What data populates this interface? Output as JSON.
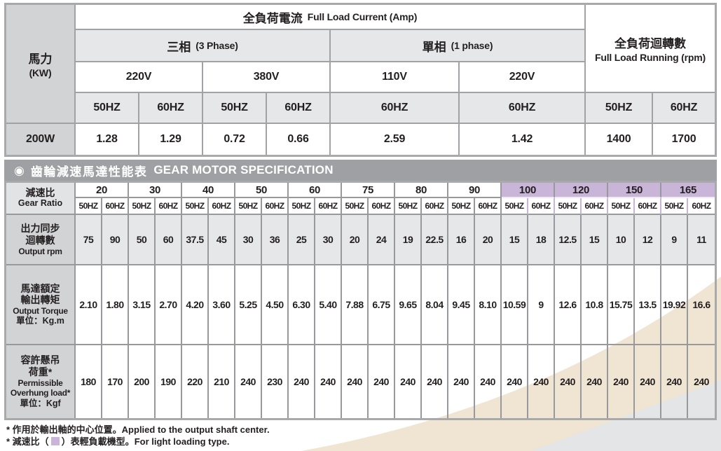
{
  "colors": {
    "accent_lavender": "#c9b5d7",
    "banner_gray": "#9ea0a3",
    "cell_gray": "#e6e7e8",
    "label_gray": "#d2d3d5",
    "beige_band": "#f0e4d3",
    "corner_gray": "#e3e5e7",
    "grid_line": "#97999c"
  },
  "top_table": {
    "power_header": {
      "zh": "馬力",
      "en": "(KW)"
    },
    "current_header": {
      "zh": "全負荷電流",
      "en": "Full Load Current (Amp)"
    },
    "rpm_header": {
      "zh": "全負荷迴轉數",
      "en": "Full Load Running (rpm)"
    },
    "phases": [
      {
        "zh": "三相",
        "en": "(3 Phase)"
      },
      {
        "zh": "單相",
        "en": "(1 phase)"
      }
    ],
    "voltages": [
      "220V",
      "380V",
      "110V",
      "220V"
    ],
    "freq_row": [
      "50HZ",
      "60HZ",
      "50HZ",
      "60HZ",
      "60HZ",
      "60HZ",
      "50HZ",
      "60HZ"
    ],
    "data_row": {
      "power": "200W",
      "currents": [
        "1.28",
        "1.29",
        "0.72",
        "0.66",
        "2.59",
        "1.42"
      ],
      "rpm": [
        "1400",
        "1700"
      ]
    }
  },
  "banner": {
    "bullet": "◉",
    "zh": "齒輪減速馬達性能表",
    "en": "GEAR MOTOR SPECIFICATION"
  },
  "gear_table": {
    "ratio_label": {
      "zh": "減速比",
      "en": "Gear Ratio"
    },
    "freq_labels": [
      "50HZ",
      "60HZ"
    ],
    "ratios": [
      {
        "value": "20",
        "light": false
      },
      {
        "value": "30",
        "light": false
      },
      {
        "value": "40",
        "light": false
      },
      {
        "value": "50",
        "light": false
      },
      {
        "value": "60",
        "light": false
      },
      {
        "value": "75",
        "light": false
      },
      {
        "value": "80",
        "light": false
      },
      {
        "value": "90",
        "light": false
      },
      {
        "value": "100",
        "light": true
      },
      {
        "value": "120",
        "light": true
      },
      {
        "value": "150",
        "light": true
      },
      {
        "value": "165",
        "light": true
      }
    ],
    "rows": [
      {
        "label_lines": [
          "出力同步",
          "迴轉數",
          "Output rpm"
        ],
        "shaded": true,
        "values": [
          "75",
          "90",
          "50",
          "60",
          "37.5",
          "45",
          "30",
          "36",
          "25",
          "30",
          "20",
          "24",
          "19",
          "22.5",
          "16",
          "20",
          "15",
          "18",
          "12.5",
          "15",
          "10",
          "12",
          "9",
          "11"
        ]
      },
      {
        "label_lines": [
          "馬達額定",
          "輸出轉矩",
          "Output Torque",
          "單位：Kg.m"
        ],
        "shaded": false,
        "values": [
          "2.10",
          "1.80",
          "3.15",
          "2.70",
          "4.20",
          "3.60",
          "5.25",
          "4.50",
          "6.30",
          "5.40",
          "7.88",
          "6.75",
          "9.65",
          "8.04",
          "9.45",
          "8.10",
          "10.59",
          "9",
          "12.6",
          "10.8",
          "15.75",
          "13.5",
          "19.92",
          "16.6"
        ]
      },
      {
        "label_lines": [
          "容許懸吊",
          "荷重*",
          "Permissible",
          "Overhung load*",
          "單位：Kgf"
        ],
        "shaded": false,
        "values": [
          "180",
          "170",
          "200",
          "190",
          "220",
          "210",
          "240",
          "230",
          "240",
          "240",
          "240",
          "240",
          "240",
          "240",
          "240",
          "240",
          "240",
          "240",
          "240",
          "240",
          "240",
          "240",
          "240",
          "240"
        ]
      }
    ]
  },
  "footnotes": {
    "line1_zh": "* 作用於輸出軸的中心位置。",
    "line1_en": "Applied to the output shaft center.",
    "line2_prefix": "* 減速比（",
    "line2_suffix": "）表輕負載機型。",
    "line2_en": "For light loading type."
  }
}
